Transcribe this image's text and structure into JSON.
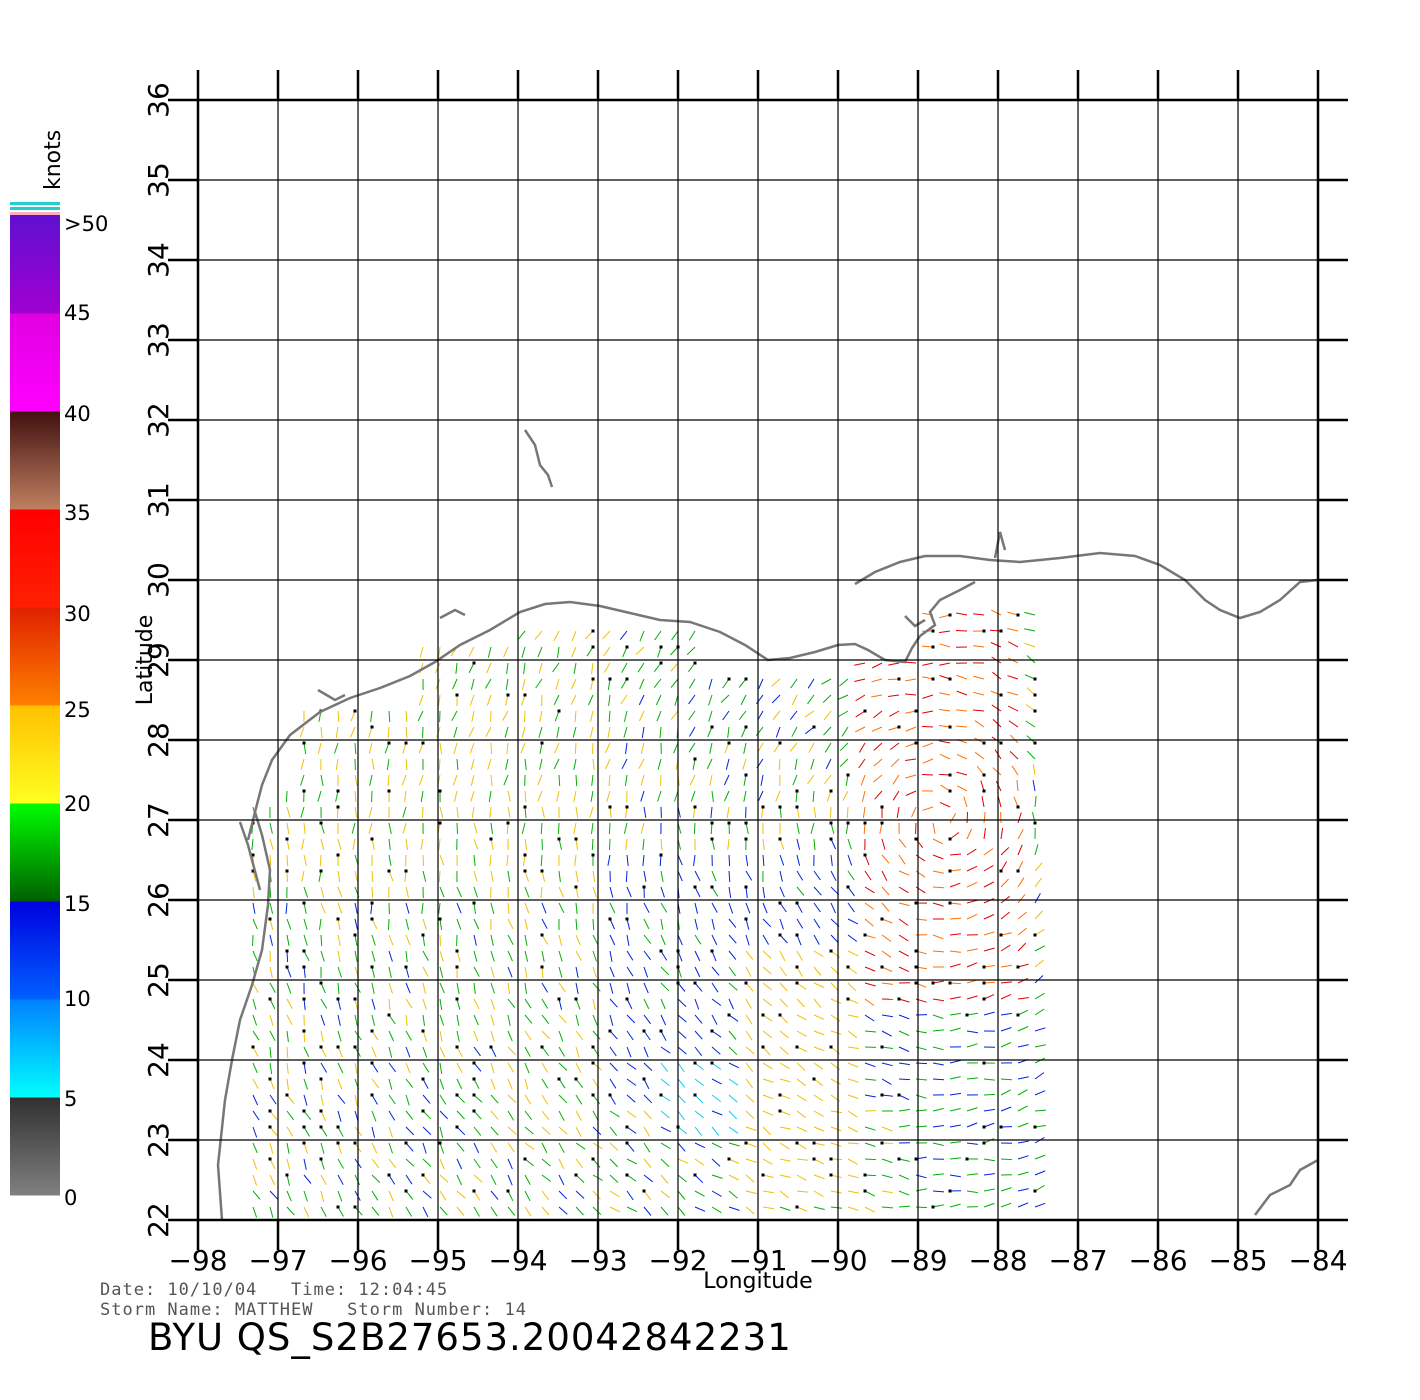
{
  "map": {
    "x_axis_label": "Longitude",
    "y_axis_label": "Latitude",
    "lon_range": [
      -98,
      -84
    ],
    "lat_range": [
      22,
      36
    ],
    "lon_ticks": [
      "−98",
      "−97",
      "−96",
      "−95",
      "−94",
      "−93",
      "−92",
      "−91",
      "−90",
      "−89",
      "−88",
      "−87",
      "−86",
      "−85",
      "−84"
    ],
    "lat_ticks": [
      "22",
      "23",
      "24",
      "25",
      "26",
      "27",
      "28",
      "29",
      "30",
      "31",
      "32",
      "33",
      "34",
      "35",
      "36"
    ],
    "grid": true,
    "coastline_color": "#777777"
  },
  "color_scale": {
    "unit": "knots",
    "labels": [
      ">50",
      "45",
      "40",
      "35",
      "30",
      "25",
      "20",
      "15",
      "10",
      "5",
      "0"
    ],
    "bands": [
      {
        "from": 0,
        "to": 5,
        "colors": [
          "#808080",
          "#303030"
        ]
      },
      {
        "from": 5,
        "to": 10,
        "colors": [
          "#00ffff",
          "#0080ff"
        ]
      },
      {
        "from": 10,
        "to": 15,
        "colors": [
          "#0060ff",
          "#0000e0"
        ]
      },
      {
        "from": 15,
        "to": 20,
        "colors": [
          "#006000",
          "#00ff00"
        ]
      },
      {
        "from": 20,
        "to": 25,
        "colors": [
          "#ffff20",
          "#ffc000"
        ]
      },
      {
        "from": 25,
        "to": 30,
        "colors": [
          "#ff8000",
          "#e02000"
        ]
      },
      {
        "from": 30,
        "to": 35,
        "colors": [
          "#ff2000",
          "#ff0000"
        ]
      },
      {
        "from": 35,
        "to": 40,
        "colors": [
          "#c08060",
          "#401010"
        ]
      },
      {
        "from": 40,
        "to": 45,
        "colors": [
          "#ff00ff",
          "#e000e0"
        ]
      },
      {
        "from": 45,
        "to": 50,
        "colors": [
          "#a000d0",
          "#6010d0"
        ]
      }
    ]
  },
  "info": {
    "line1": "Date: 10/10/04   Time: 12:04:45",
    "line2": "Storm Name: MATTHEW   Storm Number: 14",
    "title": "BYU QS_S2B27653.20042842231"
  }
}
